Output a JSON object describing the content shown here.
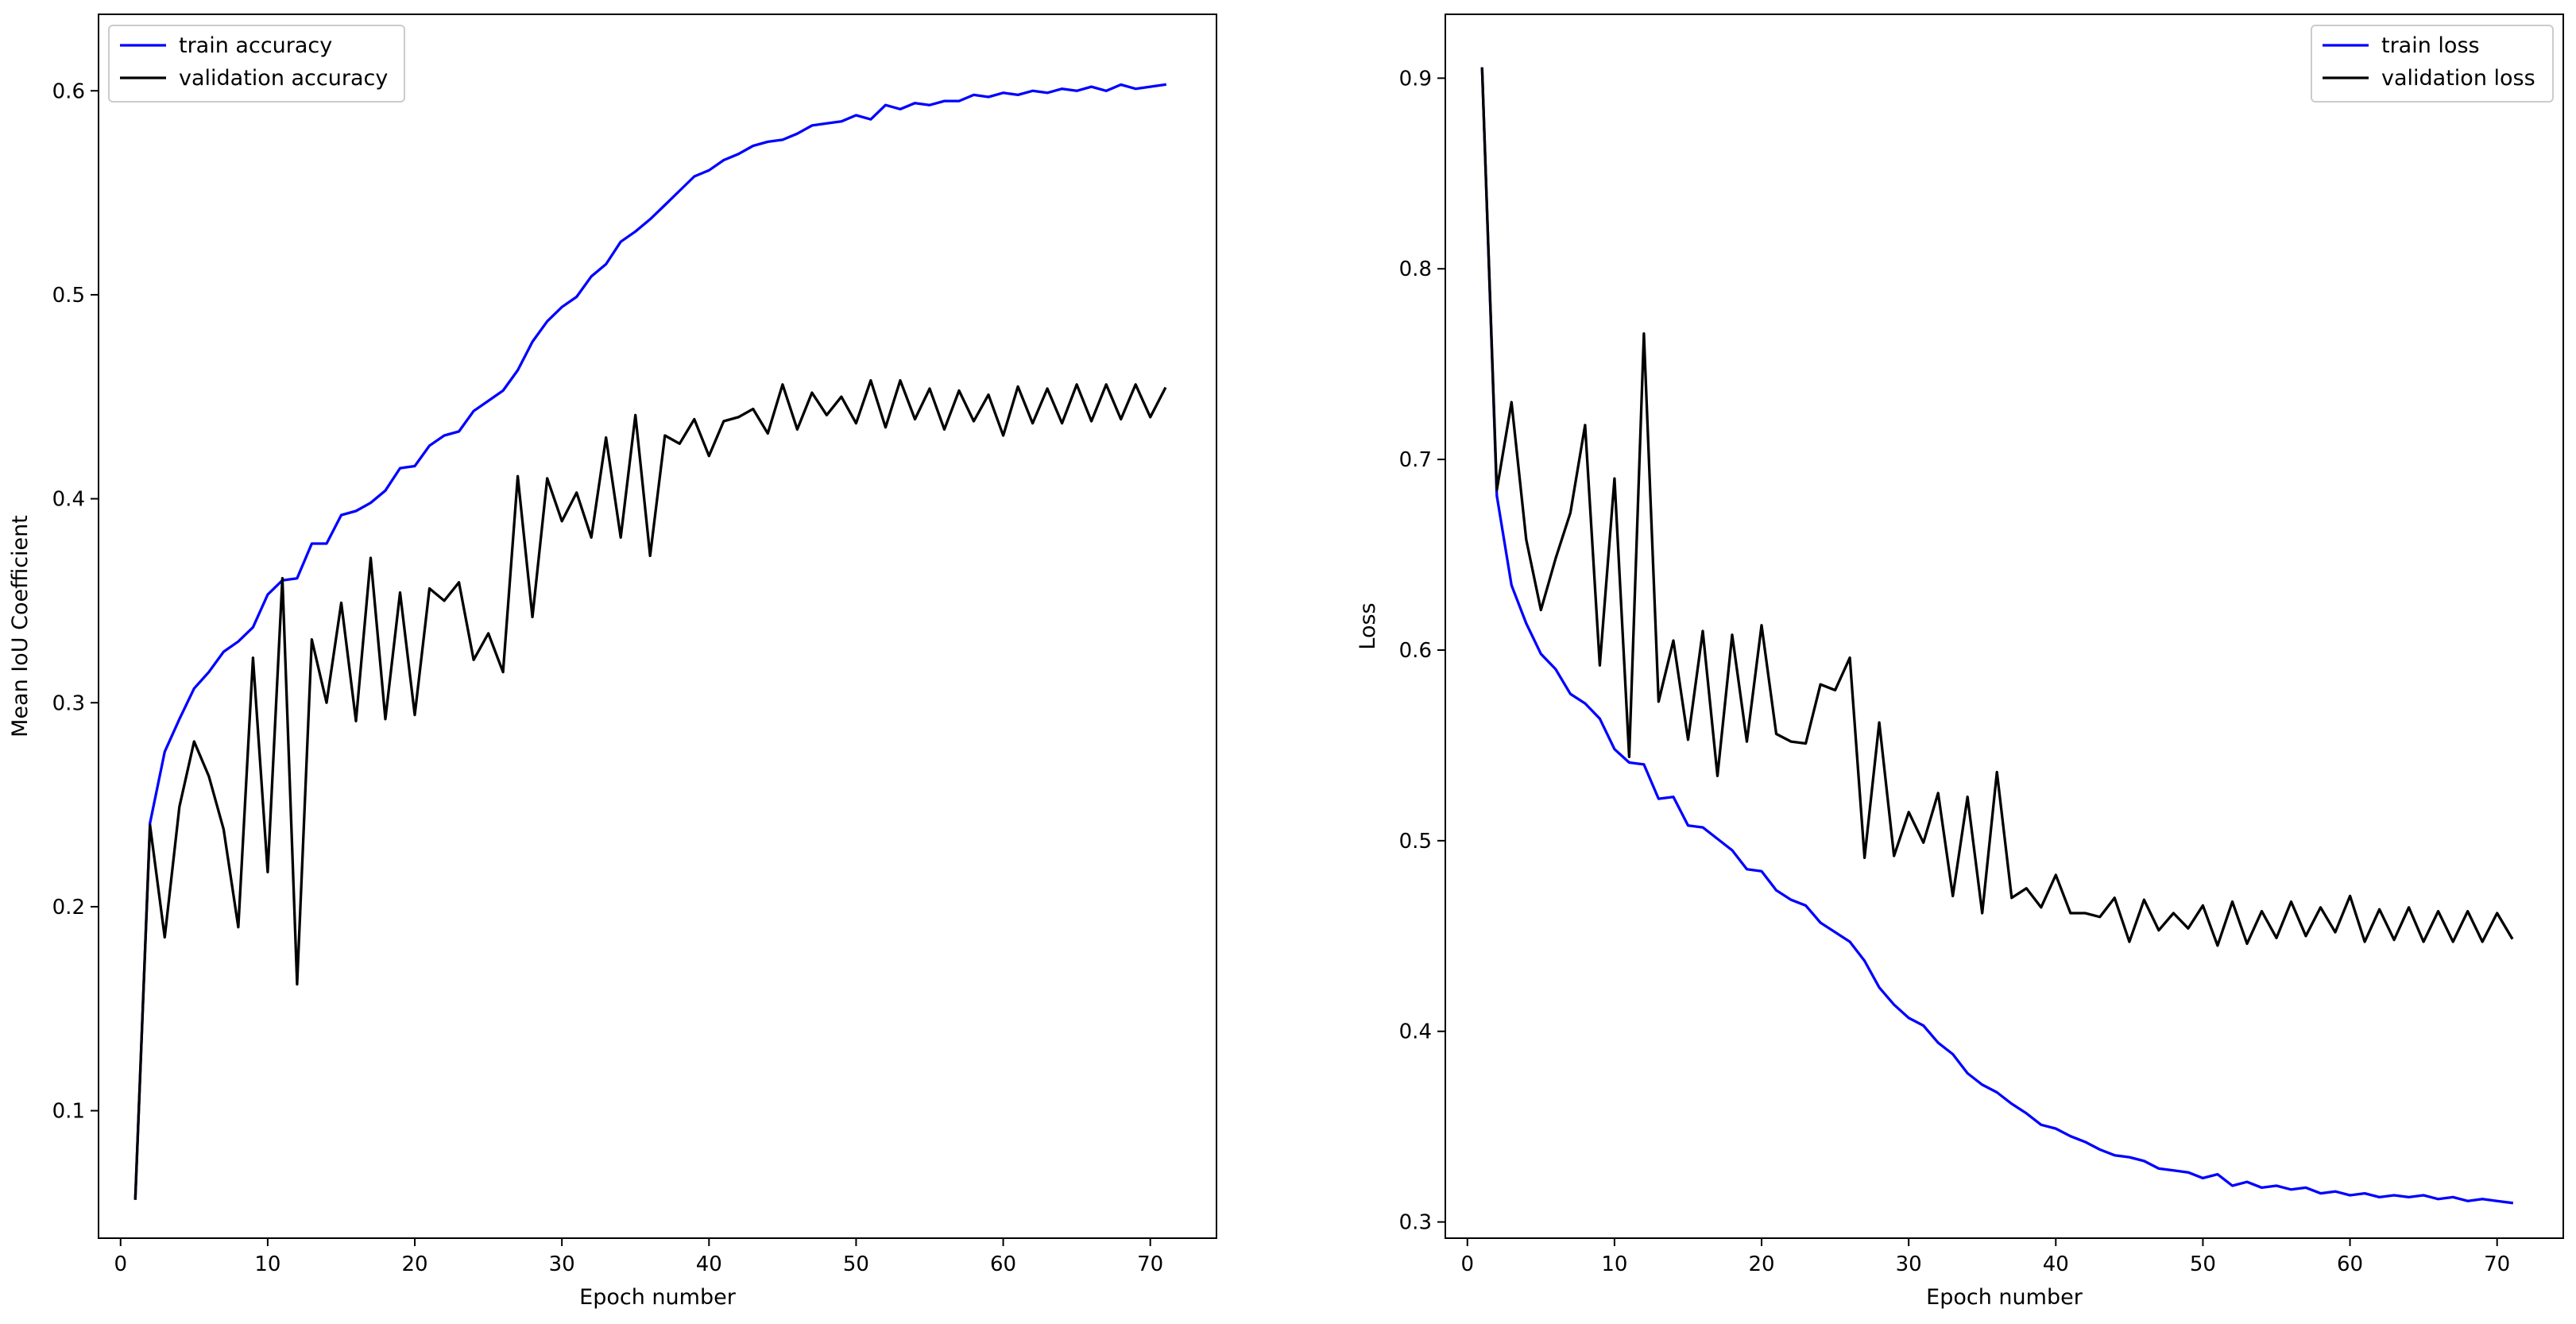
{
  "colors": {
    "train": "#0000ff",
    "validation": "#000000",
    "frame": "#000000",
    "background": "#ffffff"
  },
  "chart_data": [
    {
      "type": "line",
      "title": "",
      "xlabel": "Epoch number",
      "ylabel": "Mean IoU Coefficient",
      "xlim": [
        -1.5,
        74.5
      ],
      "ylim": [
        0.0375,
        0.6375
      ],
      "xticks": [
        0,
        10,
        20,
        30,
        40,
        50,
        60,
        70
      ],
      "xtick_labels": [
        "0",
        "10",
        "20",
        "30",
        "40",
        "50",
        "60",
        "70"
      ],
      "yticks": [
        0.1,
        0.2,
        0.3,
        0.4,
        0.5,
        0.6
      ],
      "ytick_labels": [
        "0.1",
        "0.2",
        "0.3",
        "0.4",
        "0.5",
        "0.6"
      ],
      "grid": false,
      "legend_position": "upper left",
      "series": [
        {
          "name": "train accuracy",
          "color": "#0000ff",
          "x": [
            1,
            2,
            3,
            4,
            5,
            6,
            7,
            8,
            9,
            10,
            11,
            12,
            13,
            14,
            15,
            16,
            17,
            18,
            19,
            20,
            21,
            22,
            23,
            24,
            25,
            26,
            27,
            28,
            29,
            30,
            31,
            32,
            33,
            34,
            35,
            36,
            37,
            38,
            39,
            40,
            41,
            42,
            43,
            44,
            45,
            46,
            47,
            48,
            49,
            50,
            51,
            52,
            53,
            54,
            55,
            56,
            57,
            58,
            59,
            60,
            61,
            62,
            63,
            64,
            65,
            66,
            67,
            68,
            69,
            70,
            71
          ],
          "y": [
            0.057,
            0.241,
            0.276,
            0.292,
            0.307,
            0.315,
            0.325,
            0.33,
            0.337,
            0.353,
            0.36,
            0.361,
            0.378,
            0.378,
            0.392,
            0.394,
            0.398,
            0.404,
            0.415,
            0.416,
            0.426,
            0.431,
            0.433,
            0.443,
            0.448,
            0.453,
            0.463,
            0.477,
            0.487,
            0.494,
            0.499,
            0.509,
            0.515,
            0.526,
            0.531,
            0.537,
            0.544,
            0.551,
            0.558,
            0.561,
            0.566,
            0.569,
            0.573,
            0.575,
            0.576,
            0.579,
            0.583,
            0.584,
            0.585,
            0.588,
            0.586,
            0.593,
            0.591,
            0.594,
            0.593,
            0.595,
            0.595,
            0.598,
            0.597,
            0.599,
            0.598,
            0.6,
            0.599,
            0.601,
            0.6,
            0.602,
            0.6,
            0.603,
            0.601,
            0.602,
            0.603
          ]
        },
        {
          "name": "validation accuracy",
          "color": "#000000",
          "x": [
            1,
            2,
            3,
            4,
            5,
            6,
            7,
            8,
            9,
            10,
            11,
            12,
            13,
            14,
            15,
            16,
            17,
            18,
            19,
            20,
            21,
            22,
            23,
            24,
            25,
            26,
            27,
            28,
            29,
            30,
            31,
            32,
            33,
            34,
            35,
            36,
            37,
            38,
            39,
            40,
            41,
            42,
            43,
            44,
            45,
            46,
            47,
            48,
            49,
            50,
            51,
            52,
            53,
            54,
            55,
            56,
            57,
            58,
            59,
            60,
            61,
            62,
            63,
            64,
            65,
            66,
            67,
            68,
            69,
            70,
            71
          ],
          "y": [
            0.057,
            0.24,
            0.185,
            0.249,
            0.281,
            0.264,
            0.238,
            0.19,
            0.322,
            0.217,
            0.361,
            0.162,
            0.331,
            0.3,
            0.349,
            0.291,
            0.371,
            0.292,
            0.354,
            0.294,
            0.356,
            0.35,
            0.359,
            0.321,
            0.334,
            0.315,
            0.411,
            0.342,
            0.41,
            0.389,
            0.403,
            0.381,
            0.43,
            0.381,
            0.441,
            0.372,
            0.431,
            0.427,
            0.439,
            0.421,
            0.438,
            0.44,
            0.444,
            0.432,
            0.456,
            0.434,
            0.452,
            0.441,
            0.45,
            0.437,
            0.458,
            0.435,
            0.458,
            0.439,
            0.454,
            0.434,
            0.453,
            0.438,
            0.451,
            0.431,
            0.455,
            0.437,
            0.454,
            0.437,
            0.456,
            0.438,
            0.456,
            0.439,
            0.456,
            0.44,
            0.454
          ]
        }
      ]
    },
    {
      "type": "line",
      "title": "",
      "xlabel": "Epoch number",
      "ylabel": "Loss",
      "xlim": [
        -1.5,
        74.5
      ],
      "ylim": [
        0.2915,
        0.9335
      ],
      "xticks": [
        0,
        10,
        20,
        30,
        40,
        50,
        60,
        70
      ],
      "xtick_labels": [
        "0",
        "10",
        "20",
        "30",
        "40",
        "50",
        "60",
        "70"
      ],
      "yticks": [
        0.3,
        0.4,
        0.5,
        0.6,
        0.7,
        0.8,
        0.9
      ],
      "ytick_labels": [
        "0.3",
        "0.4",
        "0.5",
        "0.6",
        "0.7",
        "0.8",
        "0.9"
      ],
      "grid": false,
      "legend_position": "upper right",
      "series": [
        {
          "name": "train loss",
          "color": "#0000ff",
          "x": [
            1,
            2,
            3,
            4,
            5,
            6,
            7,
            8,
            9,
            10,
            11,
            12,
            13,
            14,
            15,
            16,
            17,
            18,
            19,
            20,
            21,
            22,
            23,
            24,
            25,
            26,
            27,
            28,
            29,
            30,
            31,
            32,
            33,
            34,
            35,
            36,
            37,
            38,
            39,
            40,
            41,
            42,
            43,
            44,
            45,
            46,
            47,
            48,
            49,
            50,
            51,
            52,
            53,
            54,
            55,
            56,
            57,
            58,
            59,
            60,
            61,
            62,
            63,
            64,
            65,
            66,
            67,
            68,
            69,
            70,
            71
          ],
          "y": [
            0.905,
            0.681,
            0.634,
            0.614,
            0.598,
            0.59,
            0.577,
            0.572,
            0.564,
            0.548,
            0.541,
            0.54,
            0.522,
            0.523,
            0.508,
            0.507,
            0.501,
            0.495,
            0.485,
            0.484,
            0.474,
            0.469,
            0.466,
            0.457,
            0.452,
            0.447,
            0.437,
            0.423,
            0.414,
            0.407,
            0.403,
            0.394,
            0.388,
            0.378,
            0.372,
            0.368,
            0.362,
            0.357,
            0.351,
            0.349,
            0.345,
            0.342,
            0.338,
            0.335,
            0.334,
            0.332,
            0.328,
            0.327,
            0.326,
            0.323,
            0.325,
            0.319,
            0.321,
            0.318,
            0.319,
            0.317,
            0.318,
            0.315,
            0.316,
            0.314,
            0.315,
            0.313,
            0.314,
            0.313,
            0.314,
            0.312,
            0.313,
            0.311,
            0.312,
            0.311,
            0.31
          ]
        },
        {
          "name": "validation loss",
          "color": "#000000",
          "x": [
            1,
            2,
            3,
            4,
            5,
            6,
            7,
            8,
            9,
            10,
            11,
            12,
            13,
            14,
            15,
            16,
            17,
            18,
            19,
            20,
            21,
            22,
            23,
            24,
            25,
            26,
            27,
            28,
            29,
            30,
            31,
            32,
            33,
            34,
            35,
            36,
            37,
            38,
            39,
            40,
            41,
            42,
            43,
            44,
            45,
            46,
            47,
            48,
            49,
            50,
            51,
            52,
            53,
            54,
            55,
            56,
            57,
            58,
            59,
            60,
            61,
            62,
            63,
            64,
            65,
            66,
            67,
            68,
            69,
            70,
            71
          ],
          "y": [
            0.905,
            0.684,
            0.73,
            0.658,
            0.621,
            0.648,
            0.672,
            0.718,
            0.592,
            0.69,
            0.544,
            0.766,
            0.573,
            0.605,
            0.553,
            0.61,
            0.534,
            0.608,
            0.552,
            0.613,
            0.556,
            0.552,
            0.551,
            0.582,
            0.579,
            0.596,
            0.491,
            0.562,
            0.492,
            0.515,
            0.499,
            0.525,
            0.471,
            0.523,
            0.462,
            0.536,
            0.47,
            0.475,
            0.465,
            0.482,
            0.462,
            0.462,
            0.46,
            0.47,
            0.447,
            0.469,
            0.453,
            0.462,
            0.454,
            0.466,
            0.445,
            0.468,
            0.446,
            0.463,
            0.449,
            0.468,
            0.45,
            0.465,
            0.452,
            0.471,
            0.447,
            0.464,
            0.448,
            0.465,
            0.447,
            0.463,
            0.447,
            0.463,
            0.447,
            0.462,
            0.449
          ]
        }
      ]
    }
  ]
}
